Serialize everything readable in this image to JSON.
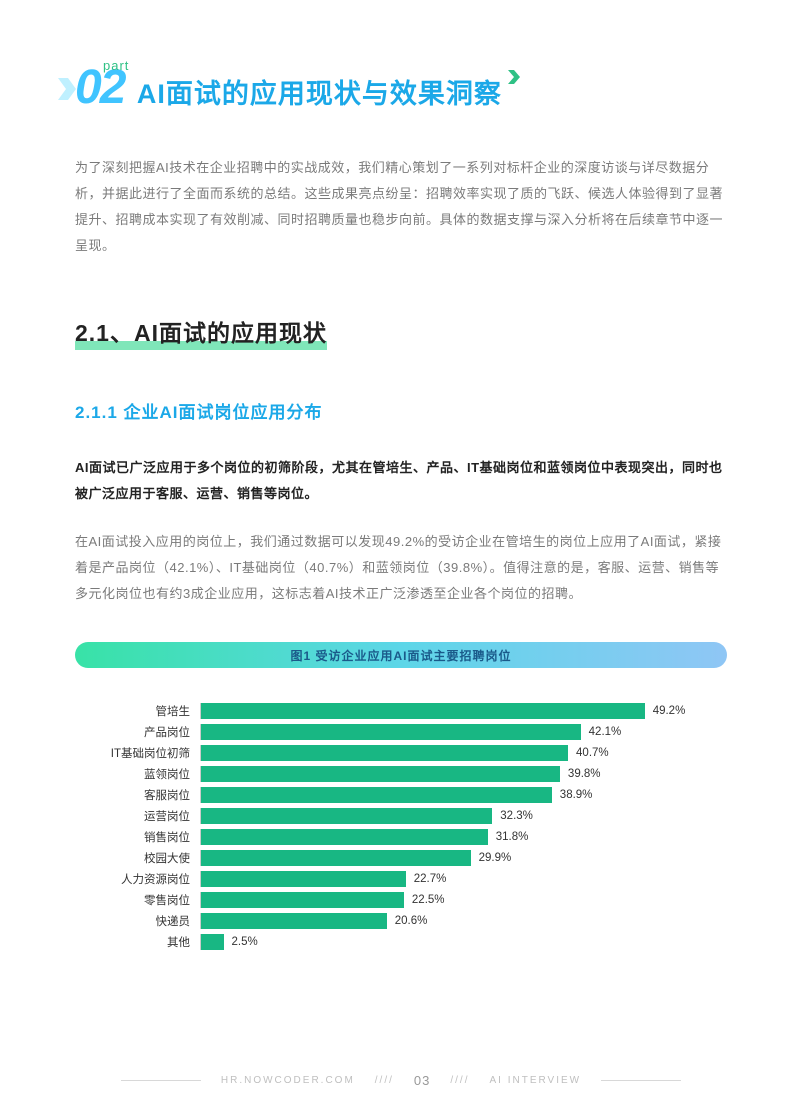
{
  "header": {
    "part_label": "part",
    "number": "02",
    "title": "AI面试的应用现状与效果洞察"
  },
  "intro": "为了深刻把握AI技术在企业招聘中的实战成效，我们精心策划了一系列对标杆企业的深度访谈与详尽数据分析，并据此进行了全面而系统的总结。这些成果亮点纷呈：招聘效率实现了质的飞跃、候选人体验得到了显著提升、招聘成本实现了有效削减、同时招聘质量也稳步向前。具体的数据支撑与深入分析将在后续章节中逐一呈现。",
  "section": {
    "number_title": "2.1、AI面试的应用现状"
  },
  "subsection": {
    "title": "2.1.1 企业AI面试岗位应用分布",
    "bold": "AI面试已广泛应用于多个岗位的初筛阶段，尤其在管培生、产品、IT基础岗位和蓝领岗位中表现突出，同时也被广泛应用于客服、运营、销售等岗位。",
    "body": "在AI面试投入应用的岗位上，我们通过数据可以发现49.2%的受访企业在管培生的岗位上应用了AI面试，紧接着是产品岗位（42.1%）、IT基础岗位（40.7%）和蓝领岗位（39.8%）。值得注意的是，客服、运营、销售等多元化岗位也有约3成企业应用，这标志着AI技术正广泛渗透至企业各个岗位的招聘。"
  },
  "chart": {
    "type": "horizontal_bar",
    "title": "图1 受访企业应用AI面试主要招聘岗位",
    "bar_color": "#18b783",
    "max_value": 55,
    "title_gradient": [
      "#38e2a7",
      "#5dd6e8",
      "#8fc6f5"
    ],
    "label_fontsize": 11.5,
    "value_fontsize": 11.5,
    "axis_color": "#cccccc",
    "items": [
      {
        "label": "管培生",
        "value": 49.2,
        "display": "49.2%"
      },
      {
        "label": "产品岗位",
        "value": 42.1,
        "display": "42.1%"
      },
      {
        "label": "IT基础岗位初筛",
        "value": 40.7,
        "display": "40.7%"
      },
      {
        "label": "蓝领岗位",
        "value": 39.8,
        "display": "39.8%"
      },
      {
        "label": "客服岗位",
        "value": 38.9,
        "display": "38.9%"
      },
      {
        "label": "运营岗位",
        "value": 32.3,
        "display": "32.3%"
      },
      {
        "label": "销售岗位",
        "value": 31.8,
        "display": "31.8%"
      },
      {
        "label": "校园大使",
        "value": 29.9,
        "display": "29.9%"
      },
      {
        "label": "人力资源岗位",
        "value": 22.7,
        "display": "22.7%"
      },
      {
        "label": "零售岗位",
        "value": 22.5,
        "display": "22.5%"
      },
      {
        "label": "快递员",
        "value": 20.6,
        "display": "20.6%"
      },
      {
        "label": "其他",
        "value": 2.5,
        "display": "2.5%"
      }
    ]
  },
  "footer": {
    "left": "HR.NOWCODER.COM",
    "slashes": "////",
    "page": "03",
    "right": "AI INTERVIEW"
  },
  "colors": {
    "accent_blue": "#1ba8e8",
    "accent_cyan": "#40c4ff",
    "accent_green": "#2fc185",
    "underline_green": "#7fe6b9",
    "text_dark": "#222222",
    "text_muted": "#7a7a7a"
  }
}
